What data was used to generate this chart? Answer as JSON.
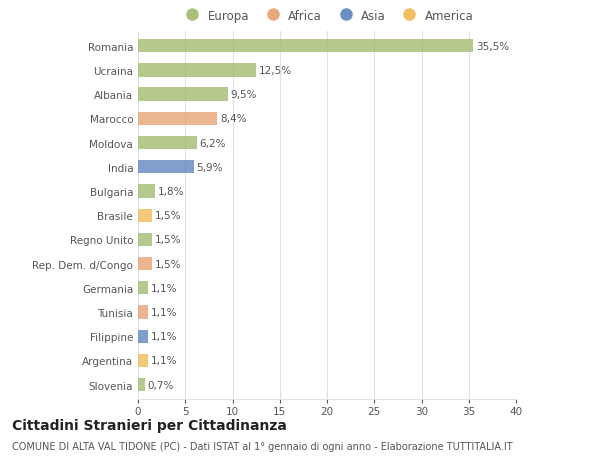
{
  "categories": [
    "Romania",
    "Ucraina",
    "Albania",
    "Marocco",
    "Moldova",
    "India",
    "Bulgaria",
    "Brasile",
    "Regno Unito",
    "Rep. Dem. d/Congo",
    "Germania",
    "Tunisia",
    "Filippine",
    "Argentina",
    "Slovenia"
  ],
  "values": [
    35.5,
    12.5,
    9.5,
    8.4,
    6.2,
    5.9,
    1.8,
    1.5,
    1.5,
    1.5,
    1.1,
    1.1,
    1.1,
    1.1,
    0.7
  ],
  "labels": [
    "35,5%",
    "12,5%",
    "9,5%",
    "8,4%",
    "6,2%",
    "5,9%",
    "1,8%",
    "1,5%",
    "1,5%",
    "1,5%",
    "1,1%",
    "1,1%",
    "1,1%",
    "1,1%",
    "0,7%"
  ],
  "colors": [
    "#a8c07a",
    "#a8c07a",
    "#a8c07a",
    "#e8a87c",
    "#a8c07a",
    "#6a8fc2",
    "#a8c07a",
    "#f0c060",
    "#a8c07a",
    "#e8a87c",
    "#a8c07a",
    "#e8a87c",
    "#6a8fc2",
    "#f0c060",
    "#a8c07a"
  ],
  "continent_colors": {
    "Europa": "#a8c07a",
    "Africa": "#e8a87c",
    "Asia": "#6a8fc2",
    "America": "#f0c060"
  },
  "legend_labels": [
    "Europa",
    "Africa",
    "Asia",
    "America"
  ],
  "title": "Cittadini Stranieri per Cittadinanza",
  "subtitle": "COMUNE DI ALTA VAL TIDONE (PC) - Dati ISTAT al 1° gennaio di ogni anno - Elaborazione TUTTITALIA.IT",
  "xlim": [
    0,
    40
  ],
  "xticks": [
    0,
    5,
    10,
    15,
    20,
    25,
    30,
    35,
    40
  ],
  "background_color": "#ffffff",
  "grid_color": "#e0e0e0",
  "bar_height": 0.55,
  "title_fontsize": 10,
  "subtitle_fontsize": 7,
  "label_fontsize": 7.5,
  "tick_fontsize": 7.5,
  "legend_fontsize": 8.5,
  "text_color": "#555555",
  "label_color": "#555555"
}
